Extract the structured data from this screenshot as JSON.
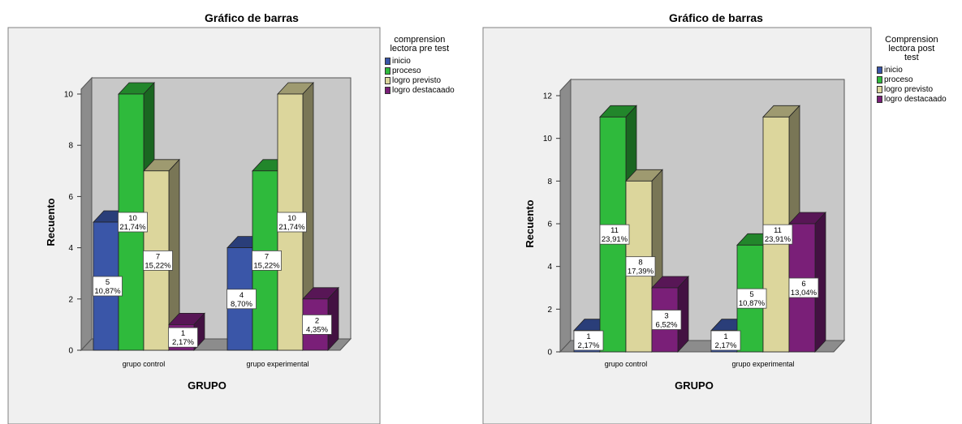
{
  "chart_data": [
    {
      "type": "bar",
      "title": "Gráfico de barras",
      "xlabel": "GRUPO",
      "ylabel": "Recuento",
      "ylim": [
        0,
        10
      ],
      "yticks": [
        "0",
        "2",
        "4",
        "6",
        "8",
        "10"
      ],
      "categories": [
        "grupo control",
        "grupo experimental"
      ],
      "legend_title": [
        "comprension",
        "lectora  pre test"
      ],
      "legend_position": "top-right",
      "series": [
        {
          "name": "inicio",
          "color": "#3a56a8",
          "values": [
            5,
            4
          ],
          "labels": [
            [
              "5",
              "10,87%"
            ],
            [
              "4",
              "8,70%"
            ]
          ]
        },
        {
          "name": "proceso",
          "color": "#2fba3c",
          "values": [
            10,
            7
          ],
          "labels": [
            [
              "10",
              "21,74%"
            ],
            [
              "7",
              "15,22%"
            ]
          ]
        },
        {
          "name": "logro previsto",
          "color": "#dcd69c",
          "values": [
            7,
            10
          ],
          "labels": [
            [
              "7",
              "15,22%"
            ],
            [
              "10",
              "21,74%"
            ]
          ]
        },
        {
          "name": "logro destacaado",
          "color": "#7a1f78",
          "values": [
            1,
            2
          ],
          "labels": [
            [
              "1",
              "2,17%"
            ],
            [
              "2",
              "4,35%"
            ]
          ]
        }
      ]
    },
    {
      "type": "bar",
      "title": "Gráfico de barras",
      "xlabel": "GRUPO",
      "ylabel": "Recuento",
      "ylim": [
        0,
        12
      ],
      "yticks": [
        "0",
        "2",
        "4",
        "6",
        "8",
        "10",
        "12"
      ],
      "categories": [
        "grupo control",
        "grupo experimental"
      ],
      "legend_title": [
        "Comprension",
        "lectora  post",
        "test"
      ],
      "legend_position": "top-right",
      "series": [
        {
          "name": "inicio",
          "color": "#3a56a8",
          "values": [
            1,
            1
          ],
          "labels": [
            [
              "1",
              "2,17%"
            ],
            [
              "1",
              "2,17%"
            ]
          ]
        },
        {
          "name": "proceso",
          "color": "#2fba3c",
          "values": [
            11,
            5
          ],
          "labels": [
            [
              "11",
              "23,91%"
            ],
            [
              "5",
              "10,87%"
            ]
          ]
        },
        {
          "name": "logro previsto",
          "color": "#dcd69c",
          "values": [
            8,
            11
          ],
          "labels": [
            [
              "8",
              "17,39%"
            ],
            [
              "11",
              "23,91%"
            ]
          ]
        },
        {
          "name": "logro destacaado",
          "color": "#7a1f78",
          "values": [
            3,
            6
          ],
          "labels": [
            [
              "3",
              "6,52%"
            ],
            [
              "6",
              "13,04%"
            ]
          ]
        }
      ]
    }
  ]
}
